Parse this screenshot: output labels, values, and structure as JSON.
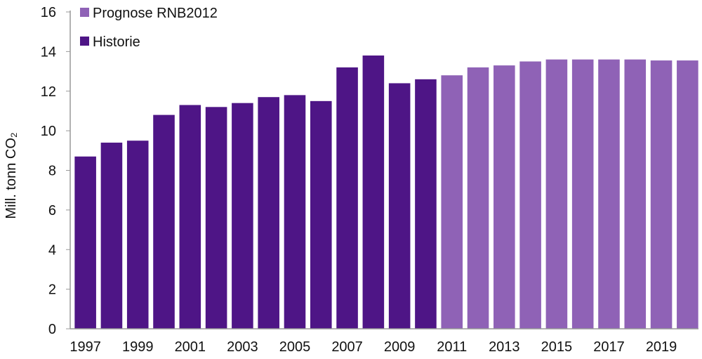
{
  "chart_data": {
    "type": "bar",
    "title": "",
    "xlabel": "",
    "ylabel": "Mill. tonn CO₂",
    "ylim": [
      0,
      16
    ],
    "yticks": [
      "0",
      "2",
      "4",
      "6",
      "8",
      "10",
      "12",
      "14",
      "16"
    ],
    "categories": [
      "1997",
      "1998",
      "1999",
      "2000",
      "2001",
      "2002",
      "2003",
      "2004",
      "2005",
      "2006",
      "2007",
      "2008",
      "2009",
      "2010",
      "2011",
      "2012",
      "2013",
      "2014",
      "2015",
      "2016",
      "2017",
      "2018",
      "2019",
      "2020"
    ],
    "xtick_labels": [
      "1997",
      "1999",
      "2001",
      "2003",
      "2005",
      "2007",
      "2009",
      "2011",
      "2013",
      "2015",
      "2017",
      "2019"
    ],
    "series": [
      {
        "name": "Historie",
        "color": "#4e1586",
        "values": [
          8.7,
          9.4,
          9.5,
          10.8,
          11.3,
          11.2,
          11.4,
          11.7,
          11.8,
          11.5,
          13.2,
          13.8,
          12.4,
          12.6,
          null,
          null,
          null,
          null,
          null,
          null,
          null,
          null,
          null,
          null
        ]
      },
      {
        "name": "Prognose RNB2012",
        "color": "#8f62b6",
        "values": [
          null,
          null,
          null,
          null,
          null,
          null,
          null,
          null,
          null,
          null,
          null,
          null,
          null,
          null,
          12.8,
          13.2,
          13.3,
          13.5,
          13.6,
          13.6,
          13.6,
          13.6,
          13.55,
          13.55
        ]
      }
    ],
    "legend": [
      "Prognose RNB2012",
      "Historie"
    ],
    "legend_placement": "top-left",
    "grid": false
  }
}
